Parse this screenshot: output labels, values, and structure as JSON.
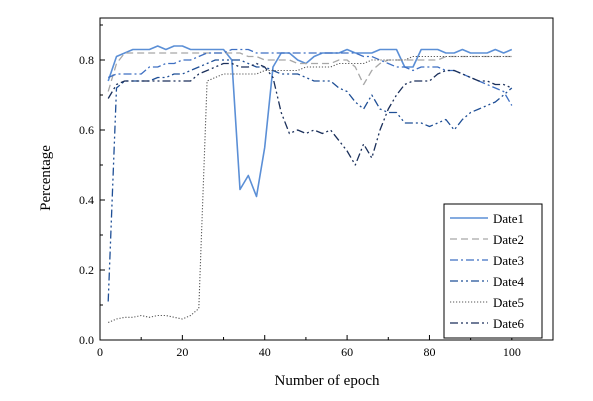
{
  "chart_data": {
    "type": "line",
    "xlabel": "Number of epoch",
    "ylabel": "Percentage",
    "xlim": [
      0,
      110
    ],
    "ylim": [
      0,
      0.92
    ],
    "xticks": [
      "0",
      "20",
      "40",
      "60",
      "80",
      "100"
    ],
    "yticks": [
      "0.0",
      "0.2",
      "0.4",
      "0.6",
      "0.8"
    ],
    "legend_position": "bottom-right",
    "series": [
      {
        "name": "Date1",
        "style": "solid",
        "color": "#5b8fd6",
        "x": [
          2,
          4,
          6,
          8,
          10,
          12,
          14,
          16,
          18,
          20,
          22,
          24,
          26,
          28,
          30,
          32,
          34,
          36,
          38,
          40,
          42,
          44,
          46,
          48,
          50,
          52,
          54,
          56,
          58,
          60,
          62,
          64,
          66,
          68,
          70,
          72,
          74,
          76,
          78,
          80,
          82,
          84,
          86,
          88,
          90,
          92,
          94,
          96,
          98,
          100
        ],
        "y": [
          0.74,
          0.81,
          0.82,
          0.83,
          0.83,
          0.83,
          0.84,
          0.83,
          0.84,
          0.84,
          0.83,
          0.83,
          0.83,
          0.83,
          0.83,
          0.8,
          0.43,
          0.47,
          0.41,
          0.55,
          0.78,
          0.82,
          0.82,
          0.8,
          0.79,
          0.81,
          0.82,
          0.82,
          0.82,
          0.83,
          0.82,
          0.82,
          0.82,
          0.83,
          0.83,
          0.83,
          0.78,
          0.78,
          0.83,
          0.83,
          0.83,
          0.82,
          0.82,
          0.83,
          0.82,
          0.82,
          0.82,
          0.83,
          0.82,
          0.83
        ]
      },
      {
        "name": "Date2",
        "style": "dashed",
        "color": "#a8a8a8",
        "x": [
          2,
          4,
          6,
          8,
          10,
          12,
          14,
          16,
          18,
          20,
          22,
          24,
          26,
          28,
          30,
          32,
          34,
          36,
          38,
          40,
          42,
          44,
          46,
          48,
          50,
          52,
          54,
          56,
          58,
          60,
          62,
          64,
          66,
          68,
          70,
          72,
          74,
          76,
          78,
          80,
          82,
          84,
          86,
          88,
          90,
          92,
          94,
          96,
          98,
          100
        ],
        "y": [
          0.71,
          0.79,
          0.82,
          0.82,
          0.82,
          0.82,
          0.82,
          0.82,
          0.82,
          0.82,
          0.82,
          0.82,
          0.82,
          0.82,
          0.82,
          0.82,
          0.82,
          0.81,
          0.81,
          0.8,
          0.8,
          0.8,
          0.8,
          0.79,
          0.79,
          0.79,
          0.79,
          0.79,
          0.8,
          0.8,
          0.78,
          0.73,
          0.77,
          0.79,
          0.8,
          0.8,
          0.8,
          0.8,
          0.8,
          0.8,
          0.8,
          0.81,
          0.81,
          0.81,
          0.81,
          0.81,
          0.81,
          0.81,
          0.81,
          0.81
        ]
      },
      {
        "name": "Date3",
        "style": "dash-dot",
        "color": "#3e6fc2",
        "x": [
          2,
          4,
          6,
          8,
          10,
          12,
          14,
          16,
          18,
          20,
          22,
          24,
          26,
          28,
          30,
          32,
          34,
          36,
          38,
          40,
          42,
          44,
          46,
          48,
          50,
          52,
          54,
          56,
          58,
          60,
          62,
          64,
          66,
          68,
          70,
          72,
          74,
          76,
          78,
          80,
          82,
          84,
          86,
          88,
          90,
          92,
          94,
          96,
          98,
          100
        ],
        "y": [
          0.75,
          0.76,
          0.76,
          0.76,
          0.76,
          0.78,
          0.78,
          0.79,
          0.79,
          0.8,
          0.8,
          0.81,
          0.82,
          0.82,
          0.82,
          0.83,
          0.83,
          0.83,
          0.82,
          0.82,
          0.82,
          0.82,
          0.82,
          0.82,
          0.82,
          0.82,
          0.82,
          0.82,
          0.82,
          0.82,
          0.82,
          0.81,
          0.81,
          0.8,
          0.79,
          0.78,
          0.78,
          0.77,
          0.78,
          0.78,
          0.78,
          0.77,
          0.77,
          0.76,
          0.75,
          0.74,
          0.73,
          0.72,
          0.71,
          0.67
        ]
      },
      {
        "name": "Date4",
        "style": "dash-dot-dot",
        "color": "#1f4f96",
        "x": [
          2,
          4,
          6,
          8,
          10,
          12,
          14,
          16,
          18,
          20,
          22,
          24,
          26,
          28,
          30,
          32,
          34,
          36,
          38,
          40,
          42,
          44,
          46,
          48,
          50,
          52,
          54,
          56,
          58,
          60,
          62,
          64,
          66,
          68,
          70,
          72,
          74,
          76,
          78,
          80,
          82,
          84,
          86,
          88,
          90,
          92,
          94,
          96,
          98,
          100
        ],
        "y": [
          0.11,
          0.72,
          0.74,
          0.74,
          0.74,
          0.74,
          0.75,
          0.75,
          0.76,
          0.76,
          0.77,
          0.78,
          0.79,
          0.8,
          0.8,
          0.8,
          0.8,
          0.79,
          0.78,
          0.78,
          0.77,
          0.76,
          0.76,
          0.76,
          0.75,
          0.74,
          0.74,
          0.74,
          0.72,
          0.71,
          0.68,
          0.66,
          0.7,
          0.66,
          0.65,
          0.65,
          0.62,
          0.62,
          0.62,
          0.61,
          0.62,
          0.63,
          0.6,
          0.63,
          0.65,
          0.66,
          0.67,
          0.68,
          0.7,
          0.72
        ]
      },
      {
        "name": "Date5",
        "style": "dotted",
        "color": "#555555",
        "x": [
          2,
          4,
          6,
          8,
          10,
          12,
          14,
          16,
          18,
          20,
          22,
          24,
          26,
          28,
          30,
          32,
          34,
          36,
          38,
          40,
          42,
          44,
          46,
          48,
          50,
          52,
          54,
          56,
          58,
          60,
          62,
          64,
          66,
          68,
          70,
          72,
          74,
          76,
          78,
          80,
          82,
          84,
          86,
          88,
          90,
          92,
          94,
          96,
          98,
          100
        ],
        "y": [
          0.05,
          0.06,
          0.065,
          0.065,
          0.07,
          0.065,
          0.07,
          0.07,
          0.065,
          0.06,
          0.07,
          0.09,
          0.74,
          0.75,
          0.76,
          0.76,
          0.76,
          0.76,
          0.76,
          0.77,
          0.77,
          0.77,
          0.77,
          0.77,
          0.78,
          0.78,
          0.78,
          0.78,
          0.79,
          0.79,
          0.79,
          0.79,
          0.8,
          0.8,
          0.8,
          0.8,
          0.8,
          0.81,
          0.81,
          0.81,
          0.81,
          0.81,
          0.81,
          0.81,
          0.81,
          0.81,
          0.81,
          0.81,
          0.81,
          0.81
        ]
      },
      {
        "name": "Date6",
        "style": "dash-dot-dot",
        "color": "#1a2f5a",
        "x": [
          2,
          4,
          6,
          8,
          10,
          12,
          14,
          16,
          18,
          20,
          22,
          24,
          26,
          28,
          30,
          32,
          34,
          36,
          38,
          40,
          42,
          44,
          46,
          48,
          50,
          52,
          54,
          56,
          58,
          60,
          62,
          64,
          66,
          68,
          70,
          72,
          74,
          76,
          78,
          80,
          82,
          84,
          86,
          88,
          90,
          92,
          94,
          96,
          98,
          100
        ],
        "y": [
          0.69,
          0.73,
          0.74,
          0.74,
          0.74,
          0.74,
          0.74,
          0.74,
          0.74,
          0.74,
          0.74,
          0.76,
          0.77,
          0.78,
          0.79,
          0.79,
          0.78,
          0.78,
          0.79,
          0.78,
          0.75,
          0.65,
          0.59,
          0.6,
          0.59,
          0.6,
          0.59,
          0.6,
          0.57,
          0.54,
          0.5,
          0.56,
          0.52,
          0.6,
          0.66,
          0.7,
          0.73,
          0.74,
          0.74,
          0.74,
          0.76,
          0.77,
          0.77,
          0.76,
          0.75,
          0.74,
          0.74,
          0.73,
          0.73,
          0.72
        ]
      }
    ]
  }
}
